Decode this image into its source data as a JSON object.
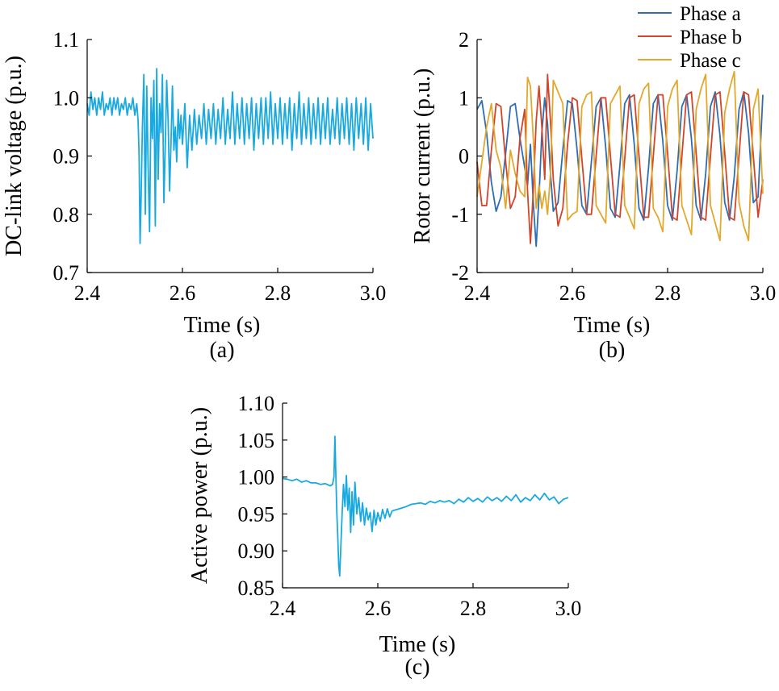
{
  "panels": [
    {
      "id": "a",
      "panel_label": "(a)",
      "chart_data": {
        "type": "line",
        "xlabel": "Time (s)",
        "ylabel": "DC-link voltage (p.u.)",
        "xlim": [
          2.4,
          3.0
        ],
        "ylim": [
          0.7,
          1.1
        ],
        "xticks": [
          "2.4",
          "2.6",
          "2.8",
          "3.0"
        ],
        "yticks": [
          "0.7",
          "0.8",
          "0.9",
          "1.0",
          "1.1"
        ],
        "grid": false,
        "series": [
          {
            "color": "#19a9e1",
            "x": [
              2.4,
              2.404,
              2.408,
              2.412,
              2.416,
              2.42,
              2.424,
              2.428,
              2.432,
              2.436,
              2.44,
              2.444,
              2.448,
              2.452,
              2.456,
              2.46,
              2.464,
              2.468,
              2.472,
              2.476,
              2.48,
              2.484,
              2.488,
              2.492,
              2.496,
              2.5,
              2.504,
              2.507,
              2.509,
              2.511,
              2.513,
              2.516,
              2.519,
              2.522,
              2.525,
              2.528,
              2.531,
              2.534,
              2.537,
              2.54,
              2.543,
              2.546,
              2.549,
              2.552,
              2.555,
              2.558,
              2.561,
              2.564,
              2.567,
              2.57,
              2.573,
              2.576,
              2.579,
              2.582,
              2.585,
              2.588,
              2.591,
              2.594,
              2.597,
              2.6,
              2.605,
              2.61,
              2.615,
              2.62,
              2.625,
              2.63,
              2.635,
              2.64,
              2.645,
              2.65,
              2.655,
              2.66,
              2.665,
              2.67,
              2.675,
              2.68,
              2.685,
              2.69,
              2.695,
              2.7,
              2.705,
              2.71,
              2.715,
              2.72,
              2.725,
              2.73,
              2.735,
              2.74,
              2.745,
              2.75,
              2.755,
              2.76,
              2.765,
              2.77,
              2.775,
              2.78,
              2.785,
              2.79,
              2.795,
              2.8,
              2.805,
              2.81,
              2.815,
              2.82,
              2.825,
              2.83,
              2.835,
              2.84,
              2.845,
              2.85,
              2.855,
              2.86,
              2.865,
              2.87,
              2.875,
              2.88,
              2.885,
              2.89,
              2.895,
              2.9,
              2.905,
              2.91,
              2.915,
              2.92,
              2.925,
              2.93,
              2.935,
              2.94,
              2.945,
              2.95,
              2.955,
              2.96,
              2.965,
              2.97,
              2.975,
              2.98,
              2.985,
              2.99,
              2.995,
              3.0
            ],
            "y": [
              0.99,
              0.97,
              1.01,
              0.98,
              1.0,
              0.97,
              1.0,
              0.98,
              1.01,
              0.97,
              0.99,
              0.98,
              1.0,
              0.97,
              1.0,
              0.98,
              1.0,
              0.97,
              0.99,
              0.98,
              1.0,
              0.97,
              0.99,
              0.98,
              1.0,
              0.97,
              0.99,
              0.96,
              0.9,
              0.75,
              0.82,
              0.95,
              1.04,
              0.8,
              1.02,
              0.88,
              0.77,
              1.0,
              0.93,
              1.03,
              0.78,
              1.05,
              0.86,
              0.99,
              0.94,
              1.04,
              0.82,
              0.92,
              1.03,
              0.96,
              0.84,
              0.92,
              1.02,
              0.91,
              0.95,
              0.89,
              0.98,
              0.93,
              0.97,
              0.92,
              0.99,
              0.88,
              0.97,
              0.91,
              0.98,
              0.92,
              0.97,
              0.93,
              0.99,
              0.92,
              0.98,
              0.93,
              0.99,
              0.92,
              0.98,
              0.93,
              1.0,
              0.92,
              0.98,
              0.93,
              1.01,
              0.92,
              0.99,
              0.93,
              1.0,
              0.92,
              0.99,
              0.93,
              1.0,
              0.91,
              0.99,
              0.93,
              1.0,
              0.92,
              1.0,
              0.93,
              1.01,
              0.92,
              0.99,
              0.93,
              1.0,
              0.92,
              0.99,
              0.93,
              1.0,
              0.91,
              0.99,
              0.93,
              1.01,
              0.92,
              0.99,
              0.93,
              1.0,
              0.92,
              0.99,
              0.93,
              1.0,
              0.92,
              0.99,
              0.93,
              1.0,
              0.92,
              0.98,
              0.93,
              1.0,
              0.92,
              0.99,
              0.93,
              1.0,
              0.92,
              0.99,
              0.91,
              1.0,
              0.93,
              0.99,
              0.92,
              1.0,
              0.91,
              0.99,
              0.93
            ]
          }
        ]
      }
    },
    {
      "id": "b",
      "panel_label": "(b)",
      "chart_data": {
        "type": "line",
        "xlabel": "Time (s)",
        "ylabel": "Rotor current (p.u.)",
        "xlim": [
          2.4,
          3.0
        ],
        "ylim": [
          -2,
          2
        ],
        "xticks": [
          "2.4",
          "2.6",
          "2.8",
          "3.0"
        ],
        "yticks": [
          "-2",
          "-1",
          "0",
          "1",
          "2"
        ],
        "grid": false,
        "legend_position": "top-right",
        "series": [
          {
            "name": "Phase a",
            "color": "#2e6db4",
            "x": [
              2.4,
              2.41,
              2.42,
              2.43,
              2.44,
              2.45,
              2.46,
              2.47,
              2.48,
              2.49,
              2.5,
              2.506,
              2.512,
              2.518,
              2.524,
              2.53,
              2.536,
              2.542,
              2.548,
              2.554,
              2.56,
              2.57,
              2.58,
              2.59,
              2.6,
              2.61,
              2.62,
              2.63,
              2.64,
              2.65,
              2.66,
              2.67,
              2.68,
              2.69,
              2.7,
              2.71,
              2.72,
              2.73,
              2.74,
              2.75,
              2.76,
              2.77,
              2.78,
              2.79,
              2.8,
              2.81,
              2.82,
              2.83,
              2.84,
              2.85,
              2.86,
              2.87,
              2.88,
              2.89,
              2.9,
              2.91,
              2.92,
              2.93,
              2.94,
              2.95,
              2.96,
              2.97,
              2.98,
              2.99,
              3.0
            ],
            "y": [
              0.8,
              0.95,
              0.4,
              -0.45,
              -0.95,
              -0.7,
              0.05,
              0.85,
              0.9,
              0.3,
              -0.2,
              -0.5,
              0.2,
              -0.8,
              -1.55,
              -0.7,
              0.4,
              1.0,
              0.55,
              -0.3,
              -0.95,
              -0.8,
              0.1,
              0.95,
              0.9,
              0.1,
              -0.85,
              -1.0,
              -0.1,
              0.85,
              1.0,
              0.15,
              -0.9,
              -1.05,
              -0.15,
              0.9,
              1.05,
              0.2,
              -0.9,
              -1.1,
              -0.2,
              0.9,
              1.05,
              0.25,
              -0.85,
              -1.1,
              -0.25,
              0.85,
              1.05,
              0.3,
              -0.85,
              -1.1,
              -0.3,
              0.85,
              1.1,
              0.35,
              -0.8,
              -1.1,
              -0.35,
              0.8,
              1.1,
              0.4,
              -0.8,
              -0.7,
              1.05
            ]
          },
          {
            "name": "Phase b",
            "color": "#d2452a",
            "x": [
              2.4,
              2.41,
              2.42,
              2.43,
              2.44,
              2.45,
              2.46,
              2.47,
              2.48,
              2.49,
              2.5,
              2.506,
              2.512,
              2.518,
              2.524,
              2.53,
              2.536,
              2.542,
              2.548,
              2.554,
              2.56,
              2.57,
              2.58,
              2.59,
              2.6,
              2.61,
              2.62,
              2.63,
              2.64,
              2.65,
              2.66,
              2.67,
              2.68,
              2.69,
              2.7,
              2.71,
              2.72,
              2.73,
              2.74,
              2.75,
              2.76,
              2.77,
              2.78,
              2.79,
              2.8,
              2.81,
              2.82,
              2.83,
              2.84,
              2.85,
              2.86,
              2.87,
              2.88,
              2.89,
              2.9,
              2.91,
              2.92,
              2.93,
              2.94,
              2.95,
              2.96,
              2.97,
              2.98,
              2.99,
              3.0
            ],
            "y": [
              -0.1,
              -0.85,
              -0.85,
              0.1,
              0.9,
              0.85,
              -0.1,
              -0.9,
              -0.7,
              0.3,
              0.8,
              -0.6,
              -1.5,
              -0.6,
              0.6,
              1.2,
              0.5,
              -0.4,
              1.4,
              0.6,
              -0.4,
              -1.2,
              -0.9,
              0.2,
              1.0,
              0.95,
              -0.05,
              -1.0,
              -1.0,
              0.0,
              1.0,
              1.0,
              0.0,
              -1.0,
              -1.05,
              -0.05,
              1.0,
              1.05,
              0.0,
              -1.05,
              -1.05,
              0.0,
              1.05,
              1.05,
              0.05,
              -1.05,
              -1.1,
              0.0,
              1.05,
              1.1,
              0.05,
              -1.05,
              -1.1,
              0.0,
              1.05,
              1.1,
              0.05,
              -1.05,
              -1.1,
              0.0,
              1.1,
              1.05,
              0.0,
              -1.05,
              -0.4
            ]
          },
          {
            "name": "Phase c",
            "color": "#e3a82b",
            "x": [
              2.4,
              2.41,
              2.42,
              2.43,
              2.44,
              2.45,
              2.46,
              2.47,
              2.48,
              2.49,
              2.5,
              2.506,
              2.512,
              2.518,
              2.524,
              2.53,
              2.536,
              2.542,
              2.548,
              2.554,
              2.56,
              2.57,
              2.58,
              2.59,
              2.6,
              2.61,
              2.62,
              2.63,
              2.64,
              2.65,
              2.66,
              2.67,
              2.68,
              2.69,
              2.7,
              2.71,
              2.72,
              2.73,
              2.74,
              2.75,
              2.76,
              2.77,
              2.78,
              2.79,
              2.8,
              2.81,
              2.82,
              2.83,
              2.84,
              2.85,
              2.86,
              2.87,
              2.88,
              2.89,
              2.9,
              2.91,
              2.92,
              2.93,
              2.94,
              2.95,
              2.96,
              2.97,
              2.98,
              2.99,
              3.0
            ],
            "y": [
              -0.7,
              -0.1,
              0.5,
              0.9,
              0.1,
              -0.2,
              -0.9,
              0.1,
              -0.3,
              -0.6,
              -0.7,
              1.35,
              1.2,
              0.3,
              -0.9,
              -0.5,
              -0.9,
              -0.6,
              -1.0,
              -0.3,
              1.3,
              1.1,
              0.9,
              -1.1,
              -1.0,
              -0.95,
              0.85,
              1.05,
              1.1,
              -0.85,
              -1.0,
              -1.15,
              0.9,
              1.05,
              1.2,
              -0.85,
              -1.05,
              -1.25,
              0.9,
              1.15,
              1.25,
              -0.9,
              -1.05,
              -1.3,
              0.85,
              1.15,
              1.3,
              -0.85,
              -1.1,
              -1.35,
              0.8,
              1.15,
              1.4,
              -0.85,
              -1.15,
              -1.45,
              0.75,
              1.15,
              1.45,
              -0.8,
              -1.2,
              -1.45,
              0.8,
              1.15,
              -0.65
            ]
          }
        ]
      }
    },
    {
      "id": "c",
      "panel_label": "(c)",
      "chart_data": {
        "type": "line",
        "xlabel": "Time (s)",
        "ylabel": "Active power (p.u.)",
        "xlim": [
          2.4,
          3.0
        ],
        "ylim": [
          0.85,
          1.1
        ],
        "xticks": [
          "2.4",
          "2.6",
          "2.8",
          "3.0"
        ],
        "yticks": [
          "0.85",
          "0.90",
          "0.95",
          "1.00",
          "1.05",
          "1.10"
        ],
        "grid": false,
        "series": [
          {
            "color": "#19a9e1",
            "x": [
              2.4,
              2.41,
              2.42,
              2.43,
              2.44,
              2.45,
              2.46,
              2.47,
              2.48,
              2.49,
              2.5,
              2.505,
              2.508,
              2.51,
              2.512,
              2.514,
              2.516,
              2.518,
              2.52,
              2.522,
              2.525,
              2.528,
              2.531,
              2.534,
              2.537,
              2.54,
              2.543,
              2.546,
              2.549,
              2.552,
              2.556,
              2.56,
              2.564,
              2.568,
              2.572,
              2.576,
              2.58,
              2.584,
              2.588,
              2.592,
              2.596,
              2.6,
              2.605,
              2.61,
              2.615,
              2.62,
              2.625,
              2.63,
              2.64,
              2.65,
              2.66,
              2.67,
              2.68,
              2.69,
              2.7,
              2.71,
              2.72,
              2.73,
              2.74,
              2.75,
              2.76,
              2.77,
              2.78,
              2.79,
              2.8,
              2.81,
              2.82,
              2.83,
              2.84,
              2.85,
              2.86,
              2.87,
              2.88,
              2.89,
              2.9,
              2.91,
              2.92,
              2.93,
              2.94,
              2.95,
              2.96,
              2.97,
              2.98,
              2.99,
              3.0
            ],
            "y": [
              0.998,
              0.997,
              0.995,
              0.997,
              0.993,
              0.995,
              0.992,
              0.992,
              0.99,
              0.991,
              0.988,
              0.99,
              1.0,
              1.055,
              1.0,
              0.95,
              0.92,
              0.88,
              0.866,
              0.9,
              0.95,
              0.99,
              0.96,
              1.002,
              0.955,
              0.985,
              0.925,
              0.98,
              0.935,
              0.993,
              0.95,
              0.972,
              0.94,
              0.965,
              0.935,
              0.958,
              0.942,
              0.952,
              0.926,
              0.955,
              0.935,
              0.952,
              0.94,
              0.956,
              0.944,
              0.957,
              0.946,
              0.954,
              0.956,
              0.958,
              0.96,
              0.963,
              0.964,
              0.965,
              0.963,
              0.967,
              0.965,
              0.968,
              0.966,
              0.968,
              0.964,
              0.97,
              0.966,
              0.972,
              0.967,
              0.971,
              0.966,
              0.973,
              0.968,
              0.972,
              0.967,
              0.974,
              0.968,
              0.976,
              0.966,
              0.972,
              0.968,
              0.976,
              0.969,
              0.978,
              0.969,
              0.973,
              0.964,
              0.97,
              0.972
            ]
          }
        ]
      }
    }
  ]
}
